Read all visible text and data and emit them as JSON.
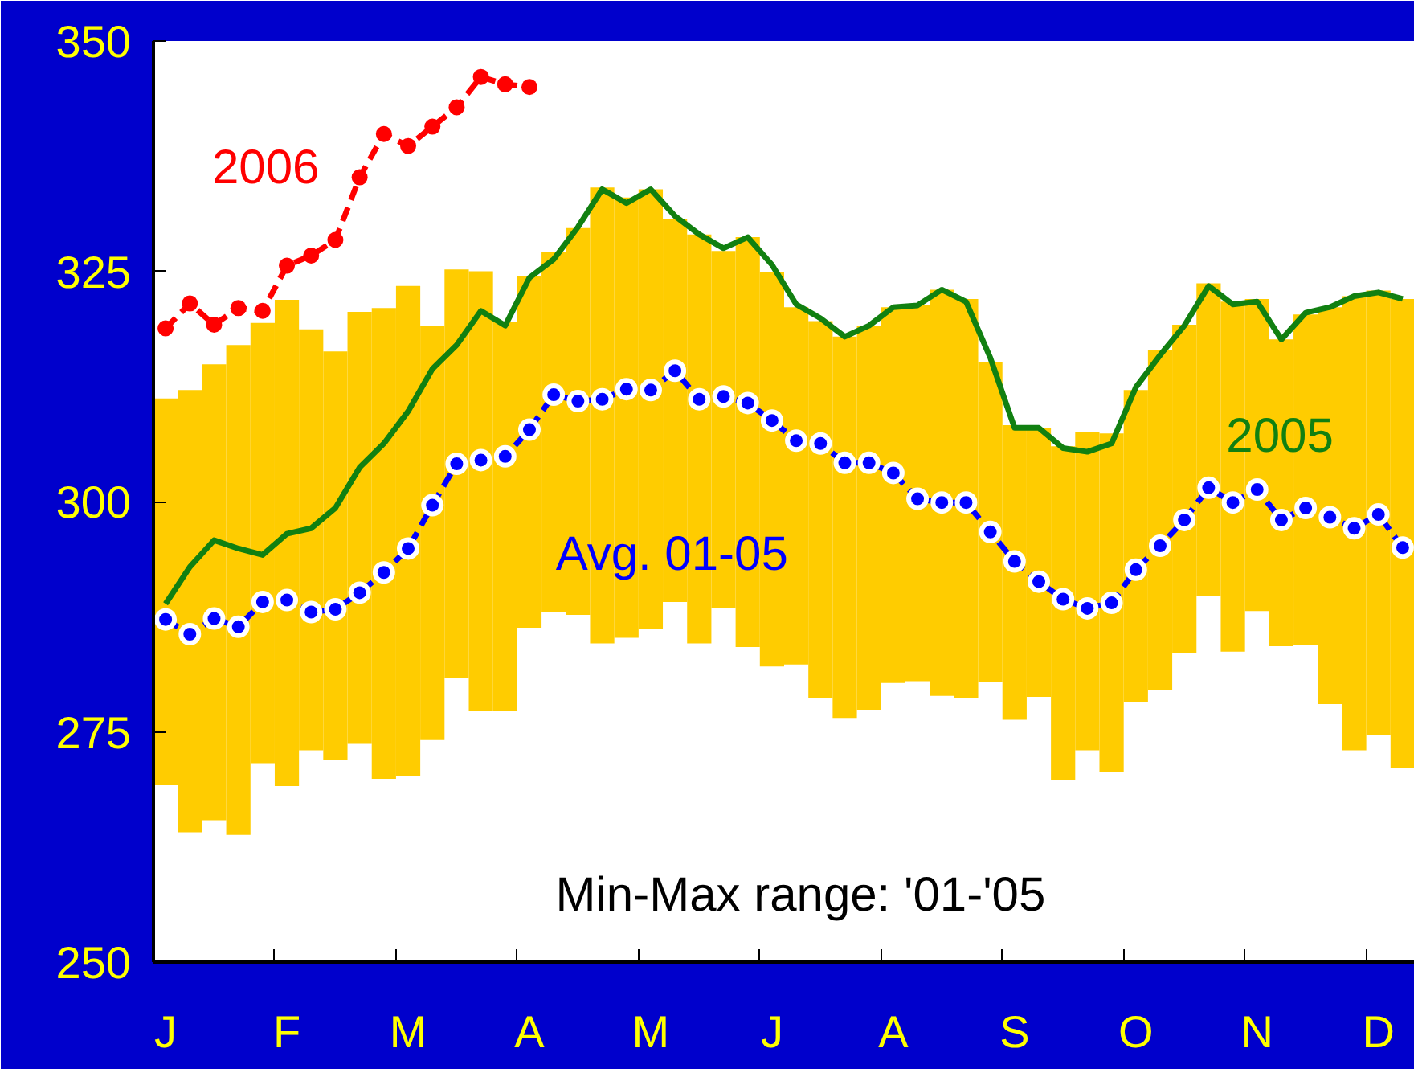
{
  "chart_data": {
    "type": "bar",
    "categories": [
      "J",
      null,
      null,
      null,
      null,
      "F",
      null,
      null,
      null,
      null,
      "M",
      null,
      null,
      null,
      null,
      "A",
      null,
      null,
      null,
      null,
      "M",
      null,
      null,
      null,
      null,
      "J",
      null,
      null,
      null,
      null,
      "A",
      null,
      null,
      null,
      null,
      "S",
      null,
      null,
      null,
      null,
      "O",
      null,
      null,
      null,
      null,
      "N",
      null,
      null,
      null,
      null,
      "D",
      null
    ],
    "series": [
      {
        "name": "Min-Max range: '01-'05",
        "color": "#ffcc00",
        "base": [
          269.2,
          264.1,
          265.4,
          263.8,
          271.6,
          269.1,
          273.0,
          272.0,
          273.7,
          269.9,
          270.2,
          274.1,
          280.9,
          277.3,
          277.3,
          286.3,
          288.0,
          287.7,
          284.6,
          285.2,
          286.2,
          289.1,
          284.6,
          288.4,
          284.2,
          282.1,
          282.3,
          278.7,
          276.5,
          277.4,
          280.3,
          280.5,
          278.9,
          278.7,
          280.4,
          276.3,
          278.8,
          269.8,
          273.0,
          270.6,
          278.2,
          279.5,
          283.5,
          289.7,
          283.7,
          288.1,
          284.3,
          284.4,
          278.0,
          273.0,
          274.6,
          271.1
        ],
        "values": [
          42.0,
          48.0,
          49.5,
          53.2,
          47.8,
          52.8,
          45.7,
          44.3,
          46.9,
          51.1,
          53.2,
          45.0,
          44.3,
          47.7,
          42.2,
          38.2,
          39.1,
          42.0,
          49.5,
          47.8,
          47.7,
          41.6,
          44.4,
          38.8,
          44.5,
          42.8,
          38.8,
          40.9,
          41.4,
          41.7,
          40.8,
          40.8,
          44.1,
          43.3,
          34.7,
          32.0,
          29.2,
          36.2,
          34.6,
          36.8,
          33.9,
          36.9,
          35.7,
          34.0,
          38.0,
          33.9,
          33.3,
          35.9,
          43.1,
          49.3,
          48.3,
          50.9
        ]
      },
      {
        "type": "line",
        "name": "Avg. 01-05",
        "color": "#0000ff",
        "marker": "circle",
        "line_style": "dashed",
        "values": [
          287.2,
          285.6,
          287.3,
          286.4,
          289.1,
          289.3,
          288.0,
          288.3,
          290.1,
          292.3,
          294.9,
          299.6,
          304.1,
          304.5,
          304.9,
          307.8,
          311.6,
          310.9,
          311.1,
          312.2,
          312.1,
          314.2,
          311.1,
          311.4,
          310.7,
          308.8,
          306.6,
          306.3,
          304.2,
          304.2,
          303.1,
          300.3,
          299.9,
          299.9,
          296.7,
          293.5,
          291.3,
          289.4,
          288.4,
          289.0,
          292.6,
          295.2,
          298.0,
          301.5,
          299.9,
          301.3,
          298.0,
          299.3,
          298.3,
          297.1,
          298.6,
          295.0
        ]
      },
      {
        "type": "line",
        "name": "2005",
        "color": "#118011",
        "marker": "none",
        "line_style": "solid",
        "values": [
          288.9,
          292.9,
          295.8,
          294.9,
          294.2,
          296.5,
          297.1,
          299.3,
          303.7,
          306.3,
          309.8,
          314.4,
          317.0,
          320.7,
          319.1,
          324.3,
          326.3,
          329.8,
          333.9,
          332.4,
          333.9,
          331.0,
          329.0,
          327.5,
          328.7,
          325.7,
          321.4,
          319.9,
          317.9,
          319.1,
          321.1,
          321.3,
          323.0,
          321.7,
          315.6,
          308.0,
          308.0,
          305.8,
          305.4,
          306.3,
          312.4,
          315.9,
          319.1,
          323.4,
          321.4,
          321.7,
          317.6,
          320.5,
          321.1,
          322.3,
          322.7,
          322.0
        ]
      },
      {
        "type": "line",
        "name": "2006",
        "color": "#ff0000",
        "marker": "circle",
        "line_style": "dashed",
        "values": [
          318.8,
          321.5,
          319.2,
          321.0,
          320.7,
          325.6,
          326.7,
          328.4,
          335.2,
          339.9,
          338.6,
          340.7,
          342.8,
          346.1,
          345.3,
          345.0,
          null,
          null,
          null,
          null,
          null,
          null,
          null,
          null,
          null,
          null,
          null,
          null,
          null,
          null,
          null,
          null,
          null,
          null,
          null,
          null,
          null,
          null,
          null,
          null,
          null,
          null,
          null,
          null,
          null,
          null,
          null,
          null,
          null,
          null,
          null,
          null
        ]
      }
    ],
    "ylim": [
      250,
      350
    ],
    "yticks": [
      250,
      275,
      300,
      325,
      350
    ],
    "grid": false
  }
}
